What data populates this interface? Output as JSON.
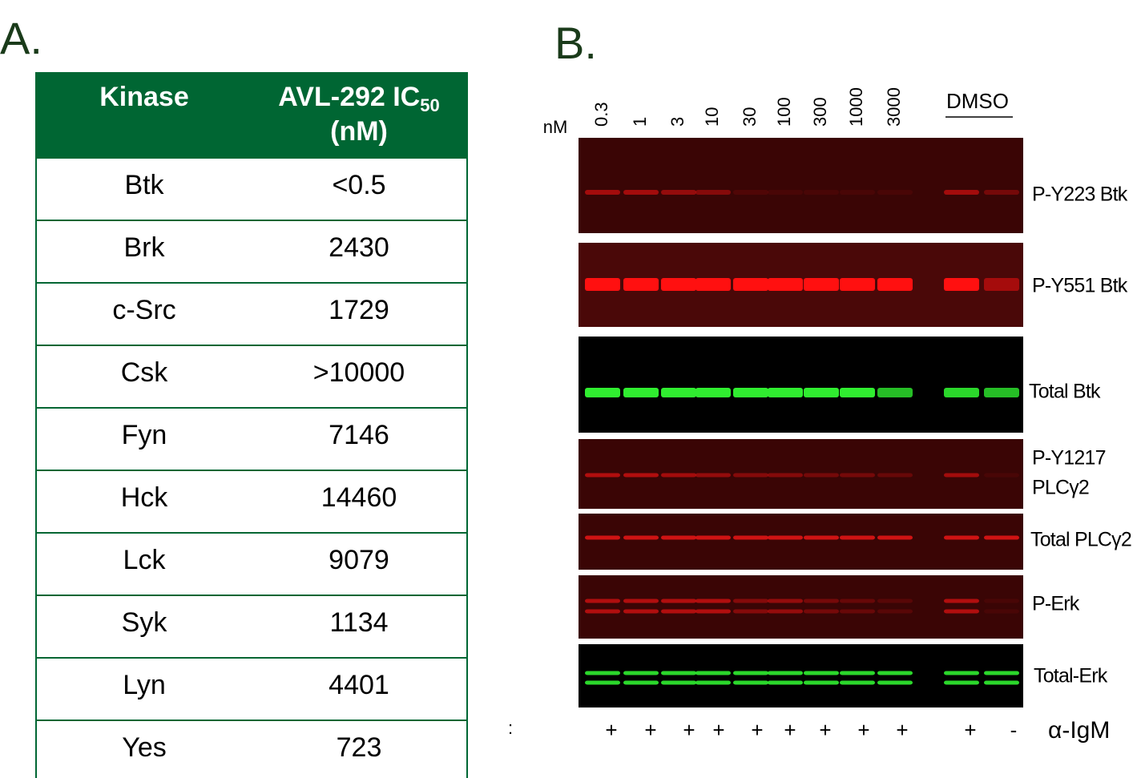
{
  "panel_a": {
    "label": "A.",
    "table": {
      "header": {
        "kinase": "Kinase",
        "ic50_main": "AVL-292 IC",
        "ic50_sub": "50",
        "ic50_unit": "(nM)"
      },
      "rows": [
        [
          "Btk",
          "<0.5"
        ],
        [
          "Brk",
          "2430"
        ],
        [
          "c-Src",
          "1729"
        ],
        [
          "Csk",
          ">10000"
        ],
        [
          "Fyn",
          "7146"
        ],
        [
          "Hck",
          "14460"
        ],
        [
          "Lck",
          "9079"
        ],
        [
          "Syk",
          "1134"
        ],
        [
          "Lyn",
          "4401"
        ],
        [
          "Yes",
          "723"
        ]
      ]
    }
  },
  "panel_b": {
    "label": "B.",
    "unit": "nM",
    "concentrations": [
      "0.3",
      "1",
      "3",
      "10",
      "30",
      "100",
      "300",
      "1000",
      "3000"
    ],
    "control": "DMSO",
    "blots": [
      [
        "P-Y223 Btk"
      ],
      [
        "P-Y551 Btk"
      ],
      [
        "Total Btk"
      ],
      [
        "P-Y1217",
        "PLCγ2"
      ],
      [
        "Total PLCγ2"
      ],
      [
        "P-Erk"
      ],
      [
        "Total-Erk"
      ]
    ],
    "treatment_marker": ":",
    "treatment_signs": [
      "+",
      "+",
      "+",
      "+",
      "+",
      "+",
      "+",
      "+",
      "+",
      "+",
      "-"
    ],
    "treatment": "α-IgM"
  }
}
